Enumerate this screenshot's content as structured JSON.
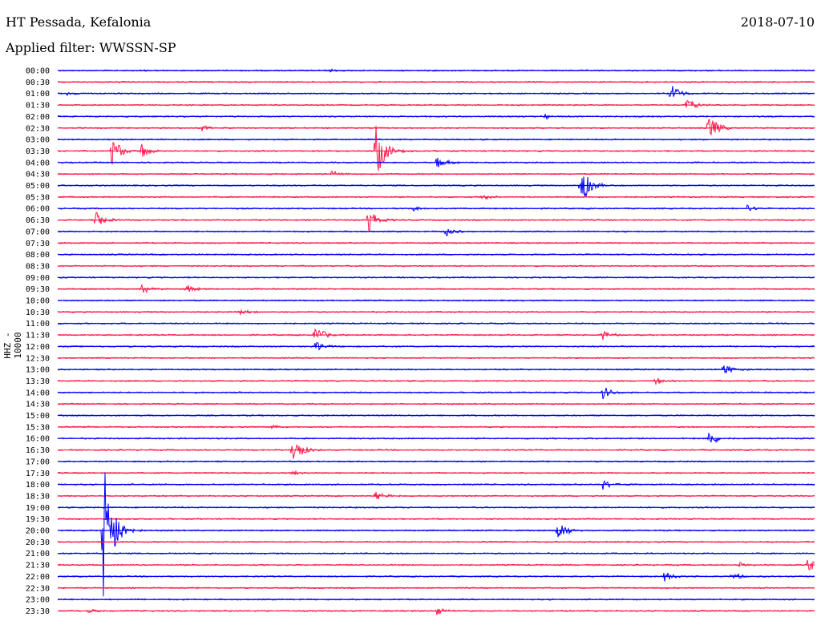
{
  "header": {
    "station": "HT Pessada, Kefalonia",
    "filter": "Applied filter: WWSSN-SP",
    "date": "2018-07-10"
  },
  "chart_data": {
    "type": "line",
    "ylabel": "HHZ - 10000",
    "colors": {
      "even": "#0000ff",
      "odd": "#ff1a4a"
    },
    "rows": [
      "00:00",
      "00:30",
      "01:00",
      "01:30",
      "02:00",
      "02:30",
      "03:00",
      "03:30",
      "04:00",
      "04:30",
      "05:00",
      "05:30",
      "06:00",
      "06:30",
      "07:00",
      "07:30",
      "08:00",
      "08:30",
      "09:00",
      "09:30",
      "10:00",
      "10:30",
      "11:00",
      "11:30",
      "12:00",
      "12:30",
      "13:00",
      "13:30",
      "14:00",
      "14:30",
      "15:00",
      "15:30",
      "16:00",
      "16:30",
      "17:00",
      "17:30",
      "18:00",
      "18:30",
      "19:00",
      "19:30",
      "20:00",
      "20:30",
      "21:00",
      "21:30",
      "22:00",
      "22:30",
      "23:00",
      "23:30"
    ],
    "events": [
      {
        "row": "00:00",
        "t": 0.11,
        "amp": 1
      },
      {
        "row": "00:00",
        "t": 0.36,
        "amp": 2
      },
      {
        "row": "01:00",
        "t": 0.01,
        "amp": 3
      },
      {
        "row": "01:00",
        "t": 0.81,
        "amp": 14
      },
      {
        "row": "01:30",
        "t": 0.83,
        "amp": 9
      },
      {
        "row": "02:00",
        "t": 0.64,
        "amp": 6
      },
      {
        "row": "02:30",
        "t": 0.19,
        "amp": 4
      },
      {
        "row": "02:30",
        "t": 0.86,
        "amp": 18
      },
      {
        "row": "03:30",
        "t": 0.07,
        "amp": 22
      },
      {
        "row": "03:30",
        "t": 0.11,
        "amp": 10
      },
      {
        "row": "03:30",
        "t": 0.42,
        "amp": 38
      },
      {
        "row": "04:00",
        "t": 0.5,
        "amp": 9
      },
      {
        "row": "04:30",
        "t": 0.36,
        "amp": 5
      },
      {
        "row": "05:00",
        "t": 0.69,
        "amp": 30
      },
      {
        "row": "05:30",
        "t": 0.56,
        "amp": 4
      },
      {
        "row": "06:00",
        "t": 0.47,
        "amp": 3
      },
      {
        "row": "06:00",
        "t": 0.91,
        "amp": 5
      },
      {
        "row": "06:30",
        "t": 0.05,
        "amp": 12
      },
      {
        "row": "06:30",
        "t": 0.41,
        "amp": 18
      },
      {
        "row": "07:00",
        "t": 0.51,
        "amp": 9
      },
      {
        "row": "09:30",
        "t": 0.11,
        "amp": 7
      },
      {
        "row": "09:30",
        "t": 0.17,
        "amp": 5
      },
      {
        "row": "10:30",
        "t": 0.24,
        "amp": 5
      },
      {
        "row": "11:30",
        "t": 0.34,
        "amp": 12
      },
      {
        "row": "11:30",
        "t": 0.72,
        "amp": 6
      },
      {
        "row": "12:00",
        "t": 0.34,
        "amp": 8
      },
      {
        "row": "13:00",
        "t": 0.88,
        "amp": 8
      },
      {
        "row": "13:30",
        "t": 0.79,
        "amp": 5
      },
      {
        "row": "14:00",
        "t": 0.72,
        "amp": 9
      },
      {
        "row": "15:30",
        "t": 0.28,
        "amp": 5
      },
      {
        "row": "16:00",
        "t": 0.86,
        "amp": 10
      },
      {
        "row": "16:30",
        "t": 0.31,
        "amp": 20
      },
      {
        "row": "17:30",
        "t": 0.31,
        "amp": 4
      },
      {
        "row": "18:00",
        "t": 0.72,
        "amp": 7
      },
      {
        "row": "18:30",
        "t": 0.42,
        "amp": 8
      },
      {
        "row": "20:00",
        "t": 0.06,
        "amp": 108
      },
      {
        "row": "20:00",
        "t": 0.66,
        "amp": 16
      },
      {
        "row": "21:30",
        "t": 0.9,
        "amp": 4
      },
      {
        "row": "21:30",
        "t": 0.99,
        "amp": 10
      },
      {
        "row": "22:00",
        "t": 0.8,
        "amp": 7
      },
      {
        "row": "22:00",
        "t": 0.89,
        "amp": 7
      },
      {
        "row": "23:30",
        "t": 0.04,
        "amp": 3
      },
      {
        "row": "23:30",
        "t": 0.5,
        "amp": 6
      }
    ]
  }
}
